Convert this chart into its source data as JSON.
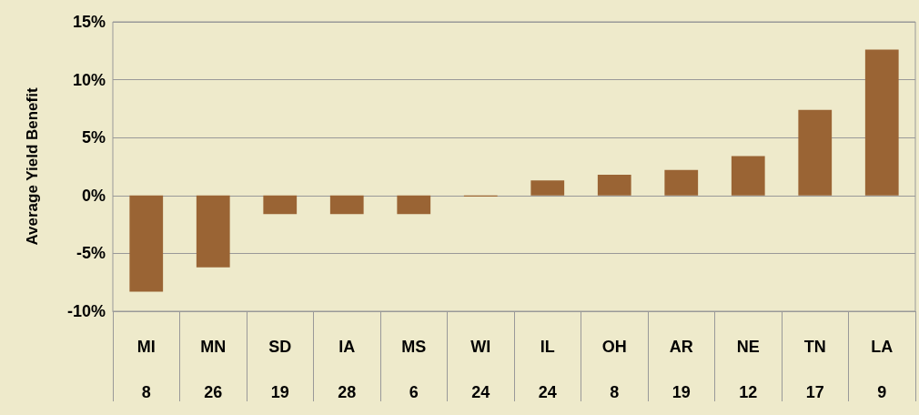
{
  "chart_data": {
    "type": "bar",
    "ylabel": "Average Yield Benefit",
    "categories": [
      "MI\n8",
      "MN\n26",
      "SD\n19",
      "IA\n28",
      "MS\n6",
      "WI\n24",
      "IL\n24",
      "OH\n8",
      "AR\n19",
      "NE\n12",
      "TN\n17",
      "LA\n9"
    ],
    "values": [
      -8.3,
      -6.2,
      -1.6,
      -1.6,
      -1.6,
      -0.1,
      1.3,
      1.8,
      2.2,
      3.4,
      7.4,
      12.6
    ],
    "color": "#9a6434",
    "ylim": [
      -10,
      15
    ],
    "yticks": [
      {
        "value": -10,
        "label": "-10%"
      },
      {
        "value": -5,
        "label": "-5%"
      },
      {
        "value": 0,
        "label": "0%"
      },
      {
        "value": 5,
        "label": "5%"
      },
      {
        "value": 10,
        "label": "10%"
      },
      {
        "value": 15,
        "label": "15%"
      }
    ],
    "grid": "y"
  }
}
